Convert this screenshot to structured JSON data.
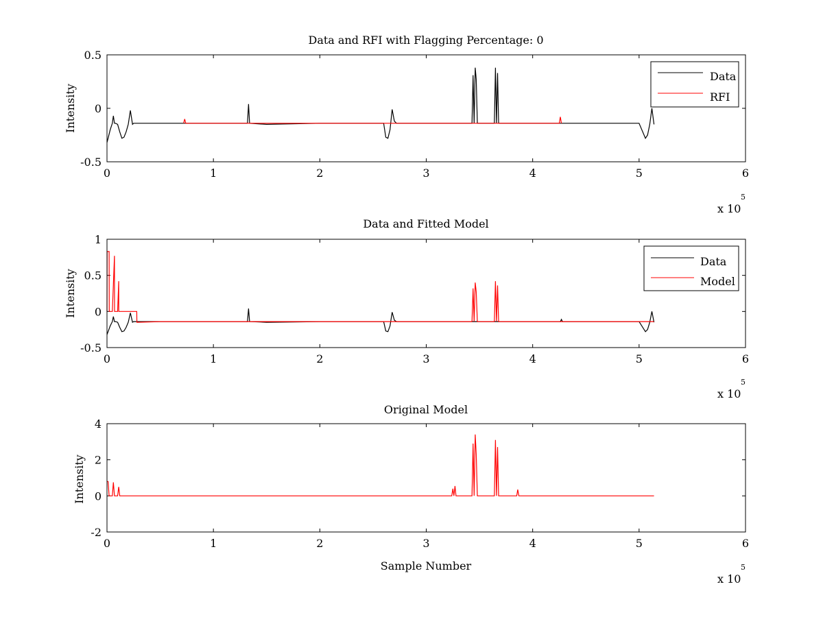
{
  "figure": {
    "background": "#ffffff",
    "colors": {
      "data": "#000000",
      "rfi": "#ff0000",
      "model": "#ff0000",
      "axes": "#000000"
    }
  },
  "chart_data": [
    {
      "type": "line",
      "title": "Data and RFI with Flagging Percentage: 0",
      "xlabel": "",
      "ylabel": "Intensity",
      "xlim": [
        0,
        6
      ],
      "ylim": [
        -0.5,
        0.5
      ],
      "xticks": [
        0,
        1,
        2,
        3,
        4,
        5,
        6
      ],
      "xtick_labels": [
        "0",
        "1",
        "2",
        "3",
        "4",
        "5",
        "6"
      ],
      "yticks": [
        -0.5,
        0,
        0.5
      ],
      "ytick_labels": [
        "-0.5",
        "0",
        "0.5"
      ],
      "x_multiplier": "x 10",
      "x_exponent": "5",
      "grid": false,
      "legend": {
        "position": "top-right",
        "entries": [
          "Data",
          "RFI"
        ]
      },
      "series": [
        {
          "name": "Data",
          "color": "#000000",
          "x": [
            0,
            0.01,
            0.03,
            0.05,
            0.06,
            0.07,
            0.08,
            0.1,
            0.12,
            0.14,
            0.16,
            0.18,
            0.2,
            0.22,
            0.24,
            0.25,
            0.5,
            1.0,
            1.32,
            1.33,
            1.34,
            1.5,
            2.0,
            2.3,
            2.6,
            2.62,
            2.64,
            2.66,
            2.68,
            2.7,
            2.72,
            2.8,
            3.0,
            3.25,
            3.43,
            3.44,
            3.45,
            3.46,
            3.47,
            3.48,
            3.5,
            3.64,
            3.65,
            3.66,
            3.67,
            3.68,
            3.7,
            3.85,
            4.0,
            4.26,
            4.5,
            5.0,
            5.06,
            5.08,
            5.1,
            5.12,
            5.14
          ],
          "y": [
            -0.32,
            -0.28,
            -0.2,
            -0.14,
            -0.07,
            -0.14,
            -0.14,
            -0.15,
            -0.22,
            -0.28,
            -0.27,
            -0.22,
            -0.15,
            -0.02,
            -0.15,
            -0.14,
            -0.14,
            -0.14,
            -0.14,
            0.04,
            -0.14,
            -0.15,
            -0.14,
            -0.14,
            -0.14,
            -0.27,
            -0.28,
            -0.2,
            -0.01,
            -0.12,
            -0.14,
            -0.14,
            -0.14,
            -0.14,
            -0.14,
            0.31,
            -0.14,
            0.38,
            0.27,
            -0.14,
            -0.14,
            -0.14,
            0.38,
            -0.14,
            0.33,
            -0.14,
            -0.14,
            -0.14,
            -0.14,
            -0.14,
            -0.14,
            -0.14,
            -0.28,
            -0.25,
            -0.15,
            0.0,
            -0.15
          ]
        },
        {
          "name": "RFI",
          "color": "#ff0000",
          "x": [
            0.72,
            0.73,
            0.74,
            4.25,
            4.26,
            4.27
          ],
          "y": [
            -0.14,
            -0.1,
            -0.14,
            -0.14,
            -0.08,
            -0.14
          ]
        }
      ]
    },
    {
      "type": "line",
      "title": "Data and Fitted Model",
      "xlabel": "",
      "ylabel": "Intensity",
      "xlim": [
        0,
        6
      ],
      "ylim": [
        -0.5,
        1
      ],
      "xticks": [
        0,
        1,
        2,
        3,
        4,
        5,
        6
      ],
      "xtick_labels": [
        "0",
        "1",
        "2",
        "3",
        "4",
        "5",
        "6"
      ],
      "yticks": [
        -0.5,
        0,
        0.5,
        1
      ],
      "ytick_labels": [
        "-0.5",
        "0",
        "0.5",
        "1"
      ],
      "x_multiplier": "x 10",
      "x_exponent": "5",
      "grid": false,
      "legend": {
        "position": "top-right",
        "entries": [
          "Data",
          "Model"
        ]
      },
      "series": [
        {
          "name": "Data",
          "color": "#000000",
          "x": [
            0,
            0.01,
            0.03,
            0.05,
            0.06,
            0.07,
            0.08,
            0.1,
            0.12,
            0.14,
            0.16,
            0.18,
            0.2,
            0.22,
            0.24,
            0.25,
            0.5,
            1.0,
            1.32,
            1.33,
            1.34,
            1.5,
            2.0,
            2.3,
            2.6,
            2.62,
            2.64,
            2.66,
            2.68,
            2.7,
            2.72,
            2.8,
            3.0,
            3.5,
            4.0,
            4.26,
            4.27,
            4.28,
            4.5,
            5.0,
            5.06,
            5.08,
            5.1,
            5.12,
            5.14
          ],
          "y": [
            -0.32,
            -0.28,
            -0.2,
            -0.14,
            -0.07,
            -0.14,
            -0.14,
            -0.15,
            -0.22,
            -0.28,
            -0.27,
            -0.22,
            -0.15,
            -0.02,
            -0.15,
            -0.14,
            -0.14,
            -0.14,
            -0.14,
            0.04,
            -0.14,
            -0.15,
            -0.14,
            -0.14,
            -0.14,
            -0.27,
            -0.28,
            -0.2,
            -0.01,
            -0.12,
            -0.14,
            -0.14,
            -0.14,
            -0.14,
            -0.14,
            -0.14,
            -0.11,
            -0.14,
            -0.14,
            -0.14,
            -0.28,
            -0.25,
            -0.15,
            0.0,
            -0.15
          ]
        },
        {
          "name": "Model",
          "color": "#ff0000",
          "x": [
            0,
            0.001,
            0.01,
            0.02,
            0.021,
            0.03,
            0.05,
            0.07,
            0.071,
            0.08,
            0.1,
            0.11,
            0.111,
            0.12,
            0.2,
            0.28,
            0.281,
            0.5,
            1.0,
            1.5,
            2.0,
            2.5,
            3.0,
            3.43,
            3.44,
            3.45,
            3.46,
            3.47,
            3.48,
            3.5,
            3.64,
            3.65,
            3.66,
            3.67,
            3.68,
            3.69,
            3.7,
            4.0,
            4.5,
            5.0,
            5.14
          ],
          "y": [
            0.0,
            0.83,
            0.83,
            0.83,
            0.0,
            0.0,
            0.0,
            0.77,
            0.0,
            0.0,
            0.0,
            0.42,
            0.0,
            0.0,
            0.0,
            0.0,
            -0.15,
            -0.14,
            -0.14,
            -0.14,
            -0.14,
            -0.14,
            -0.14,
            -0.14,
            0.32,
            -0.14,
            0.4,
            0.27,
            -0.14,
            -0.14,
            -0.14,
            0.42,
            -0.14,
            0.36,
            -0.14,
            -0.14,
            -0.14,
            -0.14,
            -0.14,
            -0.14,
            -0.14
          ]
        }
      ]
    },
    {
      "type": "line",
      "title": "Original Model",
      "xlabel": "Sample Number",
      "ylabel": "Intensity",
      "xlim": [
        0,
        6
      ],
      "ylim": [
        -2,
        4
      ],
      "xticks": [
        0,
        1,
        2,
        3,
        4,
        5,
        6
      ],
      "xtick_labels": [
        "0",
        "1",
        "2",
        "3",
        "4",
        "5",
        "6"
      ],
      "yticks": [
        -2,
        0,
        2,
        4
      ],
      "ytick_labels": [
        "-2",
        "0",
        "2",
        "4"
      ],
      "x_multiplier": "x 10",
      "x_exponent": "5",
      "grid": false,
      "series": [
        {
          "color": "#ff0000",
          "x": [
            0,
            0.01,
            0.02,
            0.05,
            0.06,
            0.07,
            0.1,
            0.11,
            0.12,
            0.5,
            0.8,
            1.0,
            1.5,
            2.0,
            2.5,
            3.0,
            3.24,
            3.25,
            3.26,
            3.27,
            3.28,
            3.43,
            3.44,
            3.45,
            3.46,
            3.47,
            3.48,
            3.64,
            3.65,
            3.66,
            3.67,
            3.68,
            3.69,
            3.85,
            3.86,
            3.87,
            4.0,
            4.5,
            5.0,
            5.14
          ],
          "y": [
            0.8,
            0.8,
            0.0,
            0.0,
            0.75,
            0.0,
            0.0,
            0.5,
            0.0,
            0.0,
            0.0,
            0.0,
            0.0,
            0.0,
            0.0,
            0.0,
            0.0,
            0.4,
            0.0,
            0.55,
            0.0,
            0.0,
            2.9,
            0.0,
            3.4,
            2.3,
            0.0,
            0.0,
            3.1,
            0.0,
            2.7,
            0.0,
            0.0,
            0.0,
            0.35,
            0.0,
            0.0,
            0.0,
            0.0,
            0.0
          ]
        }
      ]
    }
  ]
}
